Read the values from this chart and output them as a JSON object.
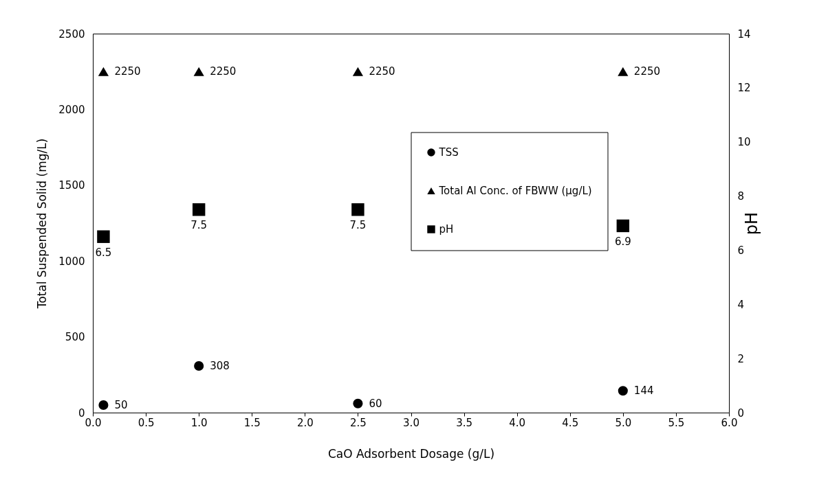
{
  "chart_data": {
    "type": "scatter",
    "xlabel": "CaO Adsorbent Dosage (g/L)",
    "ylabel": "Total Suspended Solid (mg/L)",
    "y2label": "pH",
    "x": [
      0.1,
      1.0,
      2.5,
      5.0
    ],
    "series": [
      {
        "name": "TSS",
        "color": "#000000",
        "marker": "circle",
        "values": [
          50,
          308,
          60,
          144
        ]
      },
      {
        "name": "Total Al Conc. of FBWW (μg/L)",
        "color": "#000000",
        "marker": "triangle",
        "values": [
          2250,
          2250,
          2250,
          2250
        ]
      },
      {
        "name": "pH",
        "color": "#000000",
        "marker": "square",
        "axis": "y2",
        "values": [
          6.5,
          7.5,
          7.5,
          6.9
        ]
      }
    ],
    "xlim": [
      0,
      6
    ],
    "xticks": [
      {
        "value": 0,
        "label": "0.0"
      },
      {
        "value": 0.5,
        "label": "0.5"
      },
      {
        "value": 1,
        "label": "1.0"
      },
      {
        "value": 1.5,
        "label": "1.5"
      },
      {
        "value": 2,
        "label": "2.0"
      },
      {
        "value": 2.5,
        "label": "2.5"
      },
      {
        "value": 3,
        "label": "3.0"
      },
      {
        "value": 3.5,
        "label": "3.5"
      },
      {
        "value": 4,
        "label": "4.0"
      },
      {
        "value": 4.5,
        "label": "4.5"
      },
      {
        "value": 5,
        "label": "5.0"
      },
      {
        "value": 5.5,
        "label": "5.5"
      },
      {
        "value": 6,
        "label": "6.0"
      }
    ],
    "ylim": [
      0,
      2500
    ],
    "yticks": [
      0,
      500,
      1000,
      1500,
      2000,
      2500
    ],
    "y2lim": [
      0,
      14
    ],
    "y2ticks": [
      0,
      2,
      4,
      6,
      8,
      10,
      12,
      14
    ],
    "data_labels": true,
    "grid": false,
    "legend": "center"
  }
}
